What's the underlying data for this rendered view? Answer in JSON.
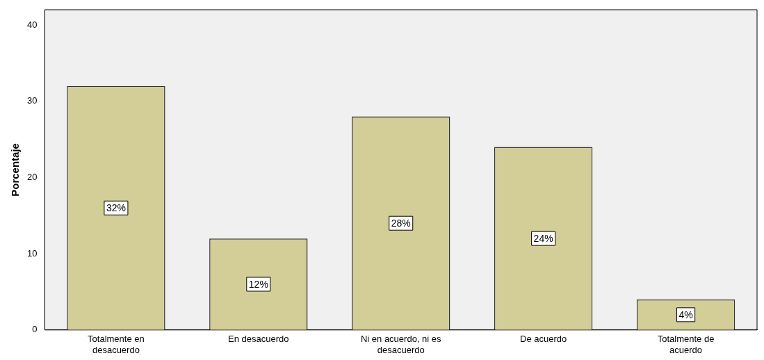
{
  "chart_data": {
    "type": "bar",
    "ylabel": "Porcentaje",
    "categories": [
      "Totalmente en desacuerdo",
      "En desacuerdo",
      "Ni en acuerdo, ni es desacuerdo",
      "De acuerdo",
      "Totalmente de acuerdo"
    ],
    "values": [
      32,
      12,
      28,
      24,
      4
    ],
    "value_labels": [
      "32%",
      "12%",
      "28%",
      "24%",
      "4%"
    ],
    "color": "#d3ce97",
    "ylim": [
      0,
      42
    ],
    "yticks": [
      0,
      10,
      20,
      30,
      40
    ],
    "grid": false,
    "legend": false
  }
}
